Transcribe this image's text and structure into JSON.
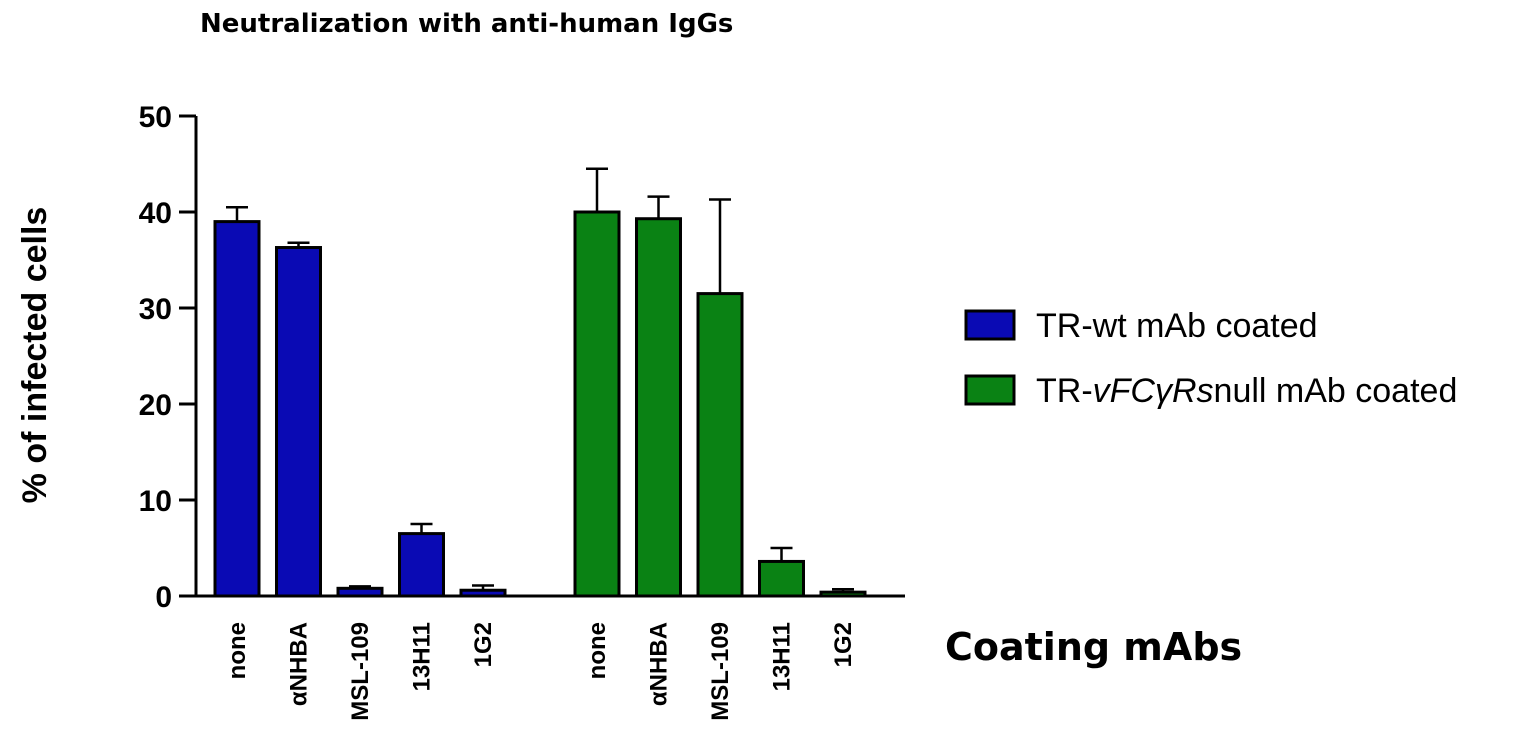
{
  "chart_data": {
    "type": "bar",
    "title": "Neutralization with anti-human IgGs",
    "xlabel": "Coating mAbs",
    "ylabel": "% of infected cells",
    "ylim": [
      0,
      50
    ],
    "yticks": [
      0,
      10,
      20,
      30,
      40,
      50
    ],
    "grid": false,
    "legend_position": "right",
    "series": [
      {
        "name": "TR-wt mAb coated",
        "legend_parts": [
          "TR-wt mAb coated"
        ],
        "color": "#0a0ab4",
        "categories": [
          "none",
          "αNHBA",
          "MSL-109",
          "13H11",
          "1G2"
        ],
        "values": [
          39,
          36.3,
          0.8,
          6.5,
          0.6
        ],
        "errors": [
          1.5,
          0.5,
          0.2,
          1.0,
          0.5
        ]
      },
      {
        "name": "TR-vFCγRsnull mAb coated",
        "legend_parts": [
          "TR-",
          "vFCγRs",
          "null mAb coated"
        ],
        "color": "#0a8214",
        "categories": [
          "none",
          "αNHBA",
          "MSL-109",
          "13H11",
          "1G2"
        ],
        "values": [
          40,
          39.3,
          31.5,
          3.6,
          0.4
        ],
        "errors": [
          4.5,
          2.3,
          9.8,
          1.4,
          0.3
        ]
      }
    ]
  }
}
